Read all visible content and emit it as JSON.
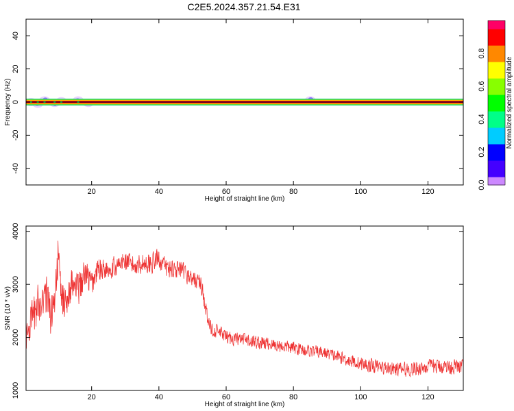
{
  "title": "C2E5.2024.357.21.54.E31",
  "chart_data": [
    {
      "type": "heatmap",
      "xlabel": "Height of straight line (km)",
      "ylabel": "Frequency (Hz)",
      "xlim": [
        0.5,
        130.5
      ],
      "ylim": [
        -50,
        50
      ],
      "x_ticks": [
        20,
        40,
        60,
        80,
        100,
        120
      ],
      "y_ticks": [
        -40,
        -20,
        0,
        20,
        40
      ],
      "grid": false,
      "colorbar": {
        "label": "Normalized spectral amplitude",
        "range": [
          0,
          1
        ],
        "ticks": [
          "0.0",
          "0.2",
          "0.4",
          "0.6",
          "0.8"
        ],
        "colormap": [
          "#cc88ff",
          "#4400ff",
          "#0000ff",
          "#00ccff",
          "#00ff88",
          "#00ff00",
          "#88ff00",
          "#ffff00",
          "#ff8800",
          "#ff0000",
          "#ff0066"
        ]
      },
      "band": {
        "center_hz": 0,
        "half_width_hz": 2
      },
      "noise_patches": [
        {
          "x": 2,
          "f": 0,
          "amp": 0.2
        },
        {
          "x": 4,
          "f": -1,
          "amp": 0.18
        },
        {
          "x": 6,
          "f": 1,
          "amp": 0.15
        },
        {
          "x": 9,
          "f": -0.5,
          "amp": 0.18
        },
        {
          "x": 11,
          "f": 0.5,
          "amp": 0.2
        },
        {
          "x": 16,
          "f": 1,
          "amp": 0.18
        },
        {
          "x": 19,
          "f": -0.5,
          "amp": 0.12
        },
        {
          "x": 85,
          "f": 1,
          "amp": 0.1
        }
      ]
    },
    {
      "type": "line",
      "xlabel": "Height of straight line (km)",
      "ylabel": "SNR (10 * v/v)",
      "xlim": [
        0.5,
        130.5
      ],
      "ylim": [
        1000,
        4100
      ],
      "x_ticks": [
        20,
        40,
        60,
        80,
        100,
        120
      ],
      "y_ticks": [
        1000,
        2000,
        3000,
        4000
      ],
      "grid": false,
      "color": "#ee3333",
      "series": [
        {
          "x": [
            0.5,
            2,
            4,
            6,
            8,
            9,
            10,
            11,
            12,
            14,
            16,
            18,
            20,
            22,
            25,
            28,
            30,
            32,
            35,
            38,
            40,
            42,
            45,
            48,
            50,
            52,
            53,
            54,
            55,
            56,
            58,
            60,
            65,
            70,
            75,
            80,
            85,
            90,
            95,
            100,
            105,
            110,
            115,
            120,
            125,
            130.5
          ],
          "values": [
            2000,
            2300,
            2600,
            2900,
            2400,
            2800,
            3500,
            2800,
            2600,
            3000,
            2900,
            3200,
            3000,
            3300,
            3300,
            3350,
            3450,
            3350,
            3400,
            3400,
            3500,
            3300,
            3300,
            3200,
            3100,
            3050,
            2900,
            2500,
            2200,
            2150,
            2100,
            2000,
            1950,
            1900,
            1850,
            1800,
            1750,
            1700,
            1600,
            1500,
            1450,
            1400,
            1400,
            1450,
            1450,
            1450
          ],
          "noise": [
            300,
            400,
            450,
            500,
            450,
            400,
            450,
            400,
            350,
            350,
            350,
            350,
            300,
            250,
            230,
            220,
            220,
            220,
            220,
            220,
            220,
            220,
            200,
            200,
            180,
            180,
            200,
            200,
            160,
            160,
            150,
            150,
            150,
            150,
            140,
            140,
            130,
            130,
            140,
            150,
            150,
            150,
            160,
            160,
            160,
            160
          ]
        }
      ]
    }
  ]
}
